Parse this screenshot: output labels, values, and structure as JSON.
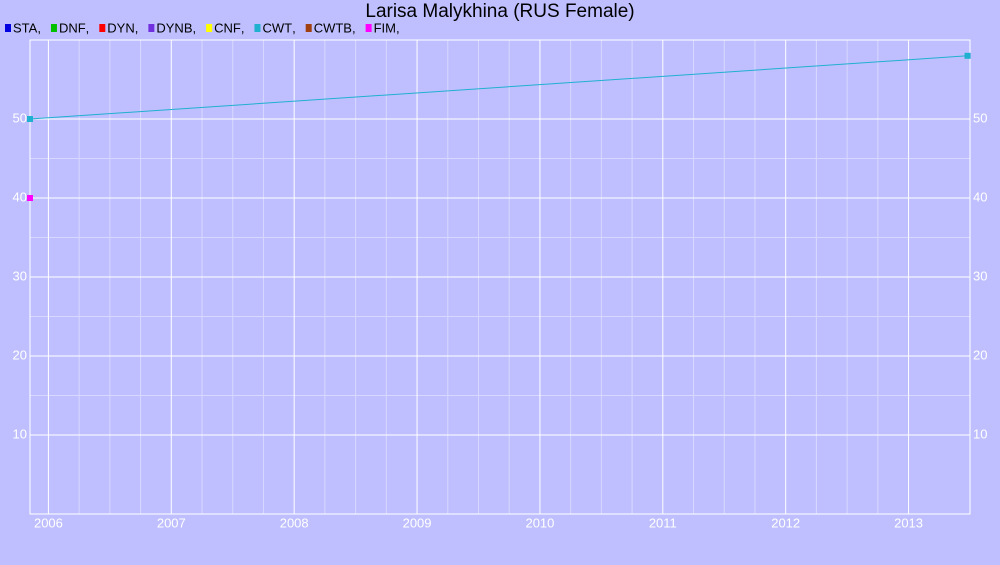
{
  "chart_data": {
    "type": "line",
    "title": "Larisa Malykhina (RUS Female)",
    "legend_separator": ",",
    "series": [
      {
        "name": "STA",
        "color": "#0000e0",
        "x": [],
        "values": []
      },
      {
        "name": "DNF",
        "color": "#00c000",
        "x": [],
        "values": []
      },
      {
        "name": "DYN",
        "color": "#ff0000",
        "x": [],
        "values": []
      },
      {
        "name": "DYNB",
        "color": "#7030e0",
        "x": [],
        "values": []
      },
      {
        "name": "CNF",
        "color": "#ffff00",
        "x": [],
        "values": []
      },
      {
        "name": "CWT",
        "color": "#20b0d0",
        "x": [
          2005.85,
          2013.48
        ],
        "values": [
          50,
          58
        ]
      },
      {
        "name": "CWTB",
        "color": "#a04010",
        "x": [],
        "values": []
      },
      {
        "name": "FIM",
        "color": "#ff00ff",
        "x": [
          2005.85
        ],
        "values": [
          40
        ]
      }
    ],
    "xlim": [
      2005.85,
      2013.5
    ],
    "xticks": [
      2006,
      2007,
      2008,
      2009,
      2010,
      2011,
      2012,
      2013
    ],
    "ylim": [
      0,
      60
    ],
    "yticks": [
      10,
      20,
      30,
      40,
      50
    ],
    "grid": true,
    "right_axis_labels": true
  }
}
